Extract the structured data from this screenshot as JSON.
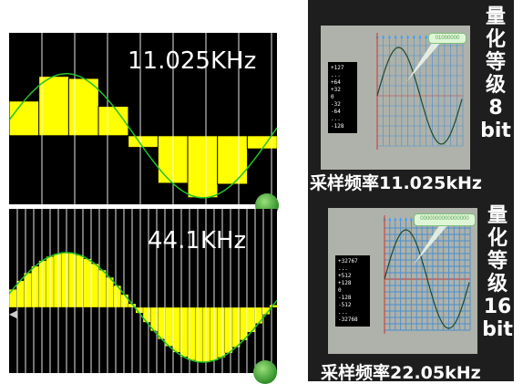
{
  "left_top": {
    "freq": "11.025KHz"
  },
  "left_bottom": {
    "freq": "44.1KHz"
  },
  "right_top": {
    "side_label": [
      "量",
      "化",
      "等",
      "级",
      "8",
      "bit"
    ],
    "caption": "采样频率11.025kHz",
    "legend": [
      "+127",
      "...",
      "+64",
      "+32",
      "0",
      "-32",
      "-64",
      "...",
      "-128"
    ],
    "bubble": "01000000"
  },
  "right_bottom": {
    "side_label": [
      "量",
      "化",
      "等",
      "级",
      "16",
      "bit"
    ],
    "caption": "采样频率22.05kHz",
    "legend": [
      "+32767",
      "...",
      "+512",
      "+128",
      "0",
      "-128",
      "-512",
      "...",
      "-32768"
    ],
    "bubble": "0000000000000000"
  },
  "colors": {
    "bar": "#ffff00",
    "wave": "#22c02a",
    "grid": "#ffffff",
    "sample_arrow": "#3aa0ff",
    "wave_dark": "#1e4a2a"
  }
}
